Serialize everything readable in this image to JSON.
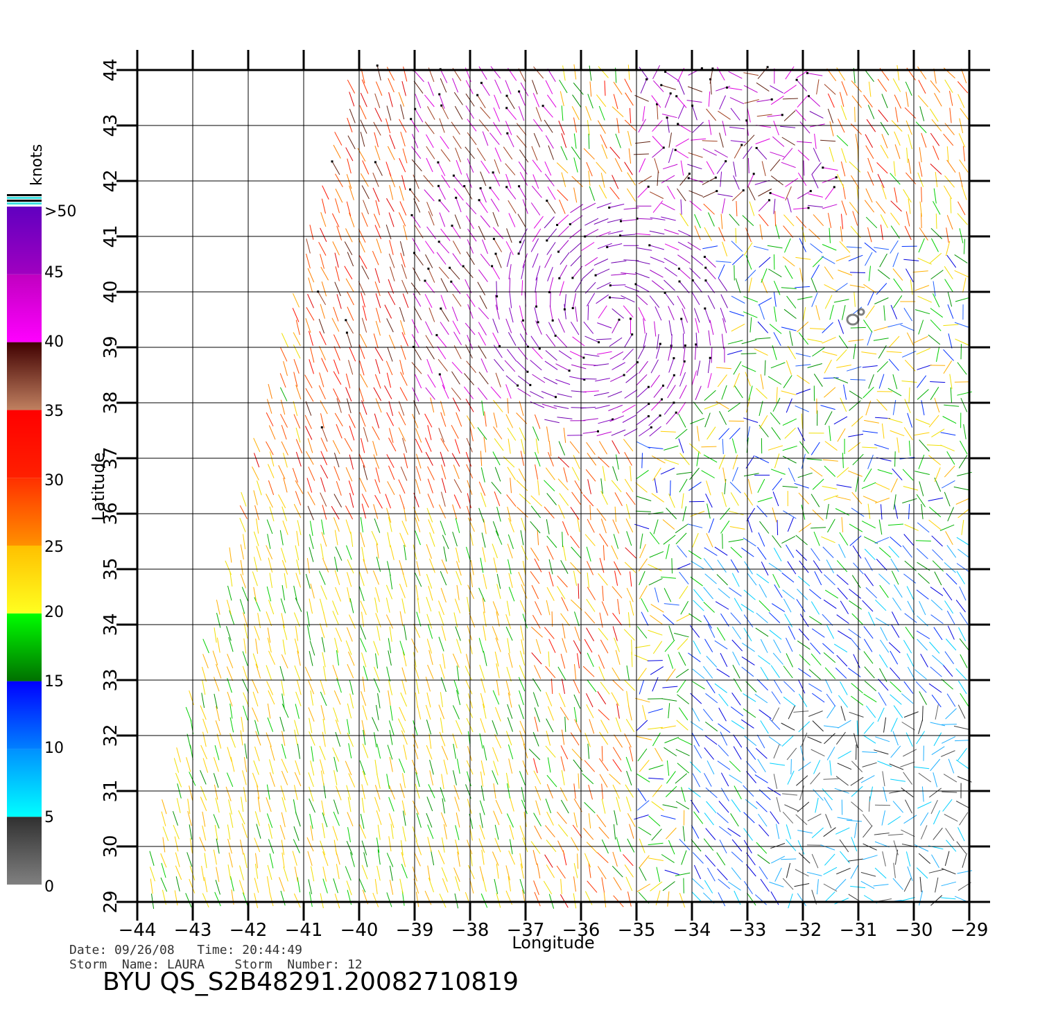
{
  "chart_data": {
    "type": "wind-vector-map",
    "xlabel": "Longitude",
    "ylabel": "Latitude",
    "xlim": [
      -44,
      -29
    ],
    "ylim": [
      29,
      44
    ],
    "x_ticks": [
      "−44",
      "−43",
      "−42",
      "−41",
      "−40",
      "−39",
      "−38",
      "−37",
      "−36",
      "−35",
      "−34",
      "−33",
      "−32",
      "−31",
      "−30",
      "−29"
    ],
    "y_ticks": [
      "29",
      "30",
      "31",
      "32",
      "33",
      "34",
      "35",
      "36",
      "37",
      "38",
      "39",
      "40",
      "41",
      "42",
      "43",
      "44"
    ],
    "grid": true,
    "colorbar": {
      "title": "knots",
      "labels": [
        "0",
        "5",
        "10",
        "15",
        "20",
        "25",
        "30",
        "35",
        "40",
        "45",
        ">50"
      ],
      "bands": [
        {
          "from": 0,
          "to": 5,
          "colors": [
            "#808080",
            "#303030"
          ]
        },
        {
          "from": 5,
          "to": 10,
          "colors": [
            "#00ffff",
            "#0090ff"
          ]
        },
        {
          "from": 10,
          "to": 15,
          "colors": [
            "#0080ff",
            "#0000ff"
          ]
        },
        {
          "from": 15,
          "to": 20,
          "colors": [
            "#007000",
            "#00ff00"
          ]
        },
        {
          "from": 20,
          "to": 25,
          "colors": [
            "#ffff20",
            "#ffc000"
          ]
        },
        {
          "from": 25,
          "to": 30,
          "colors": [
            "#ff9000",
            "#ff3000"
          ]
        },
        {
          "from": 30,
          "to": 35,
          "colors": [
            "#ff2000",
            "#ff0000"
          ]
        },
        {
          "from": 35,
          "to": 40,
          "colors": [
            "#c08060",
            "#400000"
          ]
        },
        {
          "from": 40,
          "to": 45,
          "colors": [
            "#ff00ff",
            "#c000c0"
          ]
        },
        {
          "from": 45,
          "to": 50,
          "colors": [
            "#a000c0",
            "#6000c0"
          ]
        }
      ]
    },
    "swath": {
      "west_edge": [
        [
          -40.1,
          44
        ],
        [
          -44,
          29
        ]
      ]
    },
    "wind_regimes": [
      {
        "region": "west swath",
        "speed_knots": 22,
        "direction": "NE"
      },
      {
        "region": "central north",
        "speed_knots": 30,
        "direction": "NE"
      },
      {
        "region": "storm core",
        "center": [
          -35.5,
          39.5
        ],
        "speed_knots": 45,
        "direction": "cyclonic"
      },
      {
        "region": "northeast",
        "speed_knots": 42,
        "direction": "variable"
      },
      {
        "region": "east central",
        "speed_knots": 17,
        "direction": "variable"
      },
      {
        "region": "southeast",
        "speed_knots": 12,
        "direction": "NW"
      },
      {
        "region": "far southeast",
        "speed_knots": 4,
        "direction": "variable"
      },
      {
        "region": "southwest",
        "speed_knots": 21,
        "direction": "N"
      }
    ],
    "island_outline": [
      -31.0,
      39.6
    ]
  },
  "info": {
    "date_line": "Date: 09/26/08   Time: 20:44:49",
    "storm_line": "Storm  Name: LAURA    Storm  Number: 12",
    "file_id": "BYU  QS_S2B48291.20082710819"
  }
}
